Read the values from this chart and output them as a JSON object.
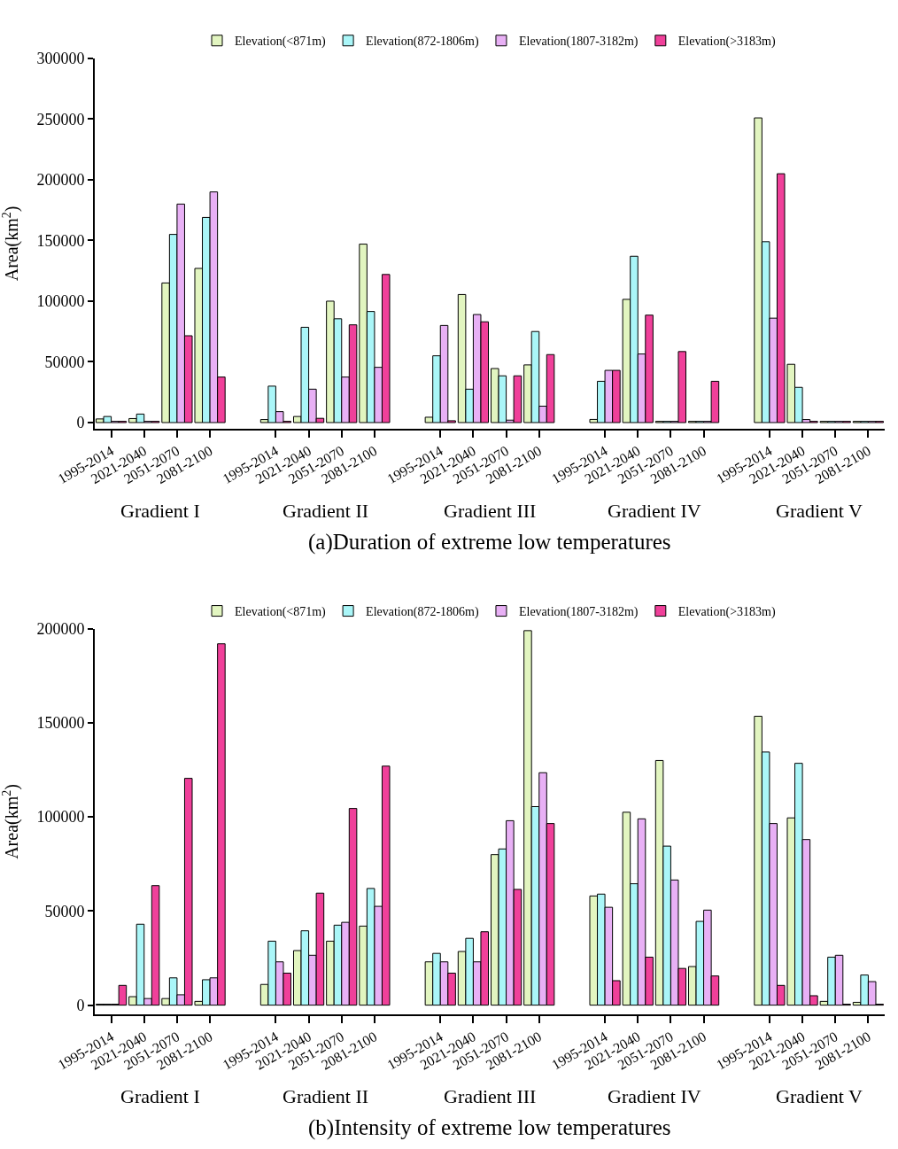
{
  "chart_data": [
    {
      "type": "bar",
      "title": "(a)Duration of extreme low temperatures",
      "ylabel": "Area(km$^{2}$)",
      "categories": [
        "1995-2014",
        "2021-2040",
        "2051-2070",
        "2081-2100",
        null,
        "1995-2014",
        "2021-2040",
        "2051-2070",
        "2081-2100",
        null,
        "1995-2014",
        "2021-2040",
        "2051-2070",
        "2081-2100",
        null,
        "1995-2014",
        "2021-2040",
        "2051-2070",
        "2081-2100",
        null,
        "1995-2014",
        "2021-2040",
        "2051-2070",
        "2081-2100"
      ],
      "series": [
        {
          "name": "Elevation(<871m)",
          "color": "#e2f5c0",
          "values": [
            3000,
            3300,
            115000,
            127000,
            null,
            2500,
            5000,
            100000,
            147000,
            null,
            4400,
            105500,
            44500,
            47500,
            null,
            2600,
            101500,
            1000,
            1000,
            null,
            251000,
            48000,
            1000,
            1000
          ]
        },
        {
          "name": "Elevation(872-1806m)",
          "color": "#aaf6f8",
          "values": [
            5000,
            7000,
            155000,
            169000,
            null,
            30000,
            78500,
            85500,
            91500,
            null,
            55000,
            27500,
            38500,
            75000,
            null,
            34000,
            137000,
            1000,
            1000,
            null,
            149000,
            29000,
            1000,
            1000
          ]
        },
        {
          "name": "Elevation(1807-3182m)",
          "color": "#e8b0f5",
          "values": [
            1000,
            1000,
            180000,
            190000,
            null,
            9000,
            27500,
            37500,
            45500,
            null,
            80000,
            89000,
            2000,
            13500,
            null,
            43000,
            56500,
            1000,
            1000,
            null,
            86000,
            2500,
            1000,
            1000
          ]
        },
        {
          "name": "Elevation(>3183m)",
          "color": "#f0409a",
          "values": [
            1000,
            1000,
            71500,
            37500,
            null,
            1000,
            3500,
            80500,
            122000,
            null,
            1500,
            83000,
            38500,
            56000,
            null,
            43000,
            88500,
            58500,
            34000,
            null,
            205000,
            1000,
            1000,
            1000
          ]
        }
      ],
      "ylim": [
        -5000,
        300000
      ],
      "yticks": [
        0,
        50000,
        100000,
        150000,
        200000,
        250000,
        300000
      ],
      "legend": "top",
      "annotations": [
        "Gradient I",
        "Gradient II",
        "Gradient III",
        "Gradient IV",
        "Gradient V"
      ]
    },
    {
      "type": "bar",
      "title": "(b)Intensity of extreme low temperatures",
      "ylabel": "Area(km$^{2}$)",
      "categories": [
        "1995-2014",
        "2021-2040",
        "2051-2070",
        "2081-2100",
        null,
        "1995-2014",
        "2021-2040",
        "2051-2070",
        "2081-2100",
        null,
        "1995-2014",
        "2021-2040",
        "2051-2070",
        "2081-2100",
        null,
        "1995-2014",
        "2021-2040",
        "2051-2070",
        "2081-2100",
        null,
        "1995-2014",
        "2021-2040",
        "2051-2070",
        "2081-2100"
      ],
      "series": [
        {
          "name": "Elevation(<871m)",
          "color": "#e2f5c0",
          "values": [
            500,
            4500,
            3500,
            2000,
            null,
            11000,
            29000,
            34000,
            42000,
            null,
            23000,
            28500,
            80000,
            199000,
            null,
            58000,
            102500,
            130000,
            20500,
            null,
            153500,
            99500,
            2000,
            1500
          ]
        },
        {
          "name": "Elevation(872-1806m)",
          "color": "#aaf6f8",
          "values": [
            500,
            43000,
            14500,
            13500,
            null,
            34000,
            39500,
            42500,
            62000,
            null,
            27500,
            35500,
            83000,
            105500,
            null,
            59000,
            64500,
            84500,
            44500,
            null,
            134500,
            128500,
            25500,
            16000
          ]
        },
        {
          "name": "Elevation(1807-3182m)",
          "color": "#e8b0f5",
          "values": [
            500,
            3500,
            5500,
            14500,
            null,
            23000,
            26500,
            44000,
            52500,
            null,
            23000,
            23000,
            98000,
            123500,
            null,
            52000,
            99000,
            66500,
            50500,
            null,
            96500,
            88000,
            26500,
            12500
          ]
        },
        {
          "name": "Elevation(>3183m)",
          "color": "#f0409a",
          "values": [
            10500,
            63500,
            120500,
            192000,
            null,
            17000,
            59500,
            104500,
            127000,
            null,
            17000,
            39000,
            61500,
            96500,
            null,
            13000,
            25500,
            19500,
            15500,
            null,
            10500,
            5000,
            500,
            500
          ]
        }
      ],
      "ylim": [
        -5000,
        200000
      ],
      "yticks": [
        0,
        50000,
        100000,
        150000,
        200000
      ],
      "legend": "top",
      "annotations": [
        "Gradient I",
        "Gradient II",
        "Gradient III",
        "Gradient IV",
        "Gradient V"
      ]
    }
  ]
}
